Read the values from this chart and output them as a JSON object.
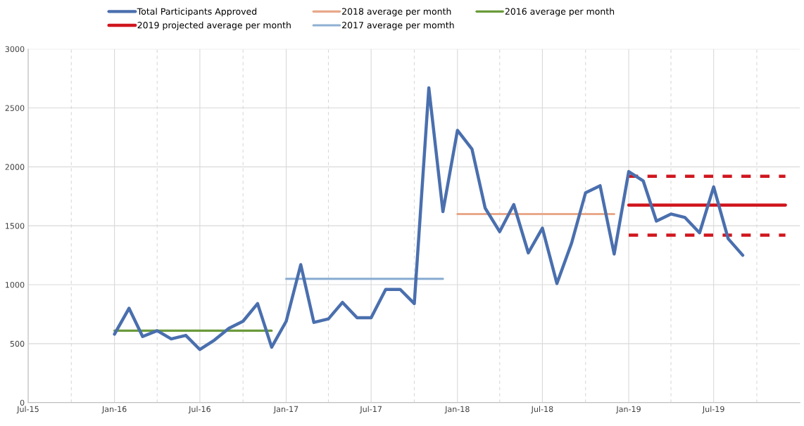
{
  "chart_data": {
    "type": "line",
    "xlim": [
      "2015-07",
      "2020-01"
    ],
    "ylim": [
      0,
      3000
    ],
    "yticks": [
      0,
      500,
      1000,
      1500,
      2000,
      2500,
      3000
    ],
    "xticks": [
      {
        "value": "2015-07",
        "label": "Jul-15"
      },
      {
        "value": "2015-10",
        "label": null
      },
      {
        "value": "2016-01",
        "label": "Jan-16"
      },
      {
        "value": "2016-04",
        "label": null
      },
      {
        "value": "2016-07",
        "label": "Jul-16"
      },
      {
        "value": "2016-10",
        "label": null
      },
      {
        "value": "2017-01",
        "label": "Jan-17"
      },
      {
        "value": "2017-04",
        "label": null
      },
      {
        "value": "2017-07",
        "label": "Jul-17"
      },
      {
        "value": "2017-10",
        "label": null
      },
      {
        "value": "2018-01",
        "label": "Jan-18"
      },
      {
        "value": "2018-04",
        "label": null
      },
      {
        "value": "2018-07",
        "label": "Jul-18"
      },
      {
        "value": "2018-10",
        "label": null
      },
      {
        "value": "2019-01",
        "label": "Jan-19"
      },
      {
        "value": "2019-04",
        "label": null
      },
      {
        "value": "2019-07",
        "label": "Jul-19"
      },
      {
        "value": "2019-10",
        "label": null
      }
    ],
    "grid": true,
    "legend": "top",
    "marker": "none",
    "series": [
      {
        "name": "Total Participants Approved",
        "color": "#4a6fae",
        "x": [
          "2016-01",
          "2016-02",
          "2016-03",
          "2016-04",
          "2016-05",
          "2016-06",
          "2016-07",
          "2016-08",
          "2016-09",
          "2016-10",
          "2016-11",
          "2016-12",
          "2017-01",
          "2017-02",
          "2017-03",
          "2017-04",
          "2017-05",
          "2017-06",
          "2017-07",
          "2017-08",
          "2017-09",
          "2017-10",
          "2017-11",
          "2017-12",
          "2018-01",
          "2018-02",
          "2018-03",
          "2018-04",
          "2018-05",
          "2018-06",
          "2018-07",
          "2018-08",
          "2018-09",
          "2018-10",
          "2018-11",
          "2018-12",
          "2019-01",
          "2019-02",
          "2019-03",
          "2019-04",
          "2019-05",
          "2019-06",
          "2019-07",
          "2019-08",
          "2019-09"
        ],
        "values": [
          580,
          800,
          560,
          610,
          540,
          570,
          450,
          530,
          630,
          690,
          840,
          470,
          690,
          1170,
          680,
          710,
          850,
          720,
          720,
          960,
          960,
          840,
          2670,
          1620,
          2310,
          2150,
          1650,
          1450,
          1680,
          1270,
          1480,
          1010,
          1350,
          1780,
          1840,
          1260,
          1960,
          1880,
          1540,
          1600,
          1570,
          1440,
          1830,
          1390,
          1250
        ]
      },
      {
        "name": "2019 projected average per month",
        "color": "#d0161e",
        "x": [
          "2019-01",
          "2019-12"
        ],
        "values": [
          1675,
          1675
        ]
      },
      {
        "name": "2018 average per month",
        "color": "#e8a88a",
        "x": [
          "2018-01",
          "2018-12"
        ],
        "values": [
          1600,
          1600
        ]
      },
      {
        "name": "2017 average per momth",
        "color": "#8fb0d4",
        "x": [
          "2017-01",
          "2017-12"
        ],
        "values": [
          1050,
          1050
        ]
      },
      {
        "name": "2016 average per month",
        "color": "#6a9a3a",
        "x": [
          "2016-01",
          "2016-12"
        ],
        "values": [
          610,
          610
        ]
      },
      {
        "color": "#d0161e",
        "line_style": "dashed",
        "x": [
          "2019-01",
          "2019-12"
        ],
        "values": [
          1920,
          1920
        ]
      },
      {
        "color": "#d0161e",
        "line_style": "dashed",
        "x": [
          "2019-01",
          "2019-12"
        ],
        "values": [
          1420,
          1420
        ]
      }
    ]
  }
}
